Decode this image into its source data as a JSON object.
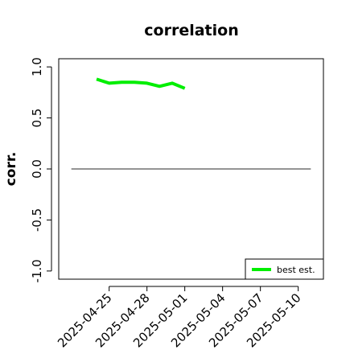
{
  "chart_data": {
    "type": "line",
    "title": "correlation",
    "xlabel": "",
    "ylabel": "corr.",
    "ylim": [
      -1.0,
      1.0
    ],
    "yticks": [
      -1.0,
      -0.5,
      0.0,
      0.5,
      1.0
    ],
    "ytick_labels": [
      "-1.0",
      "-0.5",
      "0.0",
      "0.5",
      "1.0"
    ],
    "xlim": [
      "2025-04-21",
      "2025-05-12"
    ],
    "xtick_labels": [
      "2025-04-25",
      "2025-04-28",
      "2025-05-01",
      "2025-05-04",
      "2025-05-07",
      "2025-05-10"
    ],
    "xtick_colors": [
      "#000000",
      "#000000",
      "#228B22",
      "#000000",
      "#000000",
      "#000000"
    ],
    "reference_line": {
      "y": 0.0,
      "x": [
        "2025-04-22",
        "2025-05-11"
      ],
      "color": "#555555"
    },
    "series": [
      {
        "name": "best est.",
        "color": "#00ee00",
        "x": [
          "2025-04-24",
          "2025-04-25",
          "2025-04-26",
          "2025-04-27",
          "2025-04-28",
          "2025-04-29",
          "2025-04-30",
          "2025-05-01"
        ],
        "values": [
          0.88,
          0.84,
          0.85,
          0.85,
          0.84,
          0.81,
          0.84,
          0.79
        ]
      }
    ],
    "legend": {
      "position": "bottom-right",
      "entries": [
        "best est."
      ]
    },
    "grid": false
  }
}
